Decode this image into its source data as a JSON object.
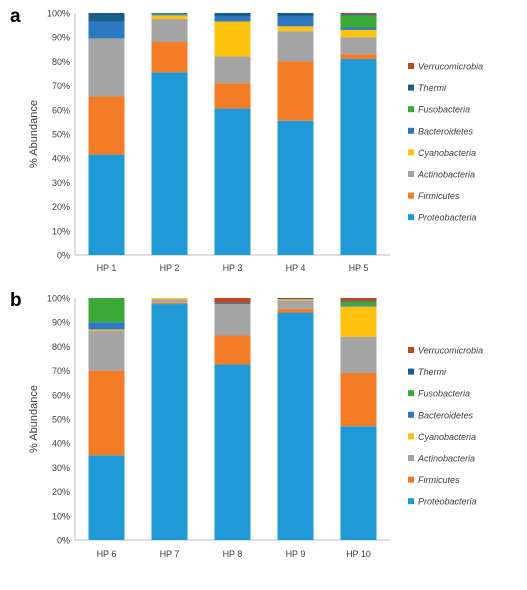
{
  "colors": {
    "Proteobacteria": "#1f9ad6",
    "Firmicutes": "#f47c27",
    "Actinobacteria": "#a5a5a5",
    "Cyanobacteria": "#ffc20e",
    "Bacteroidetes": "#2c78c2",
    "Fusobacteria": "#3aa935",
    "Thermi": "#1a5e8a",
    "Verrucomicrobia": "#c2461b"
  },
  "chart_data": [
    {
      "panel_label": "a",
      "type": "bar",
      "stacked": true,
      "ylabel": "% Abundance",
      "ylim": [
        0,
        100
      ],
      "yticks": [
        "0%",
        "10%",
        "20%",
        "30%",
        "40%",
        "50%",
        "60%",
        "70%",
        "80%",
        "90%",
        "100%"
      ],
      "categories": [
        "HP 1",
        "HP 2",
        "HP 3",
        "HP 4",
        "HP 5"
      ],
      "legend_position": "right",
      "series": [
        {
          "name": "Proteobacteria",
          "values": [
            41.5,
            75.5,
            60.5,
            55.5,
            81
          ]
        },
        {
          "name": "Firmicutes",
          "values": [
            24,
            12.5,
            10.5,
            24.5,
            2
          ]
        },
        {
          "name": "Actinobacteria",
          "values": [
            24,
            9.5,
            11,
            12.5,
            7
          ]
        },
        {
          "name": "Cyanobacteria",
          "values": [
            0,
            1.5,
            14.5,
            2,
            3
          ]
        },
        {
          "name": "Bacteroidetes",
          "values": [
            7,
            0.5,
            2,
            4,
            1
          ]
        },
        {
          "name": "Fusobacteria",
          "values": [
            0,
            0.3,
            0,
            0,
            5
          ]
        },
        {
          "name": "Thermi",
          "values": [
            3.5,
            0.2,
            1.5,
            1.5,
            0.5
          ]
        },
        {
          "name": "Verrucomicrobia",
          "values": [
            0,
            0,
            0,
            0,
            0.5
          ]
        }
      ]
    },
    {
      "panel_label": "b",
      "type": "bar",
      "stacked": true,
      "ylabel": "% Abundance",
      "ylim": [
        0,
        100
      ],
      "yticks": [
        "0%",
        "10%",
        "20%",
        "30%",
        "40%",
        "50%",
        "60%",
        "70%",
        "80%",
        "90%",
        "100%"
      ],
      "categories": [
        "HP 6",
        "HP 7",
        "HP 8",
        "HP 9",
        "HP 10"
      ],
      "legend_position": "right",
      "series": [
        {
          "name": "Proteobacteria",
          "values": [
            35,
            97.5,
            72.5,
            94,
            47
          ]
        },
        {
          "name": "Firmicutes",
          "values": [
            35,
            0.5,
            12,
            1.5,
            22
          ]
        },
        {
          "name": "Actinobacteria",
          "values": [
            16.5,
            1.5,
            13,
            3.5,
            15
          ]
        },
        {
          "name": "Cyanobacteria",
          "values": [
            0.5,
            0.5,
            0,
            0.5,
            12.5
          ]
        },
        {
          "name": "Bacteroidetes",
          "values": [
            3,
            0,
            0.5,
            0.2,
            0.5
          ]
        },
        {
          "name": "Fusobacteria",
          "values": [
            10,
            0,
            0,
            0,
            1.5
          ]
        },
        {
          "name": "Thermi",
          "values": [
            0,
            0,
            0,
            0.1,
            0.3
          ]
        },
        {
          "name": "Verrucomicrobia",
          "values": [
            0,
            0,
            2,
            0.2,
            1.2
          ]
        }
      ]
    }
  ]
}
